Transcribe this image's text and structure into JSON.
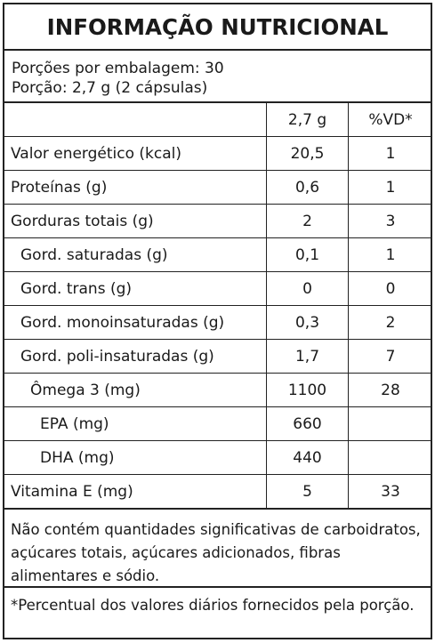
{
  "title": "INFORMAÇÃO NUTRICIONAL",
  "servings": {
    "per_package": "Porções por embalagem: 30",
    "portion": "Porção: 2,7 g (2 cápsulas)"
  },
  "table": {
    "headers": {
      "name": "",
      "amount": "2,7 g",
      "dv": "%VD*"
    },
    "rows": [
      {
        "name": "Valor energético (kcal)",
        "amount": "20,5",
        "dv": "1",
        "indent": 0
      },
      {
        "name": "Proteínas (g)",
        "amount": "0,6",
        "dv": "1",
        "indent": 0
      },
      {
        "name": "Gorduras totais (g)",
        "amount": "2",
        "dv": "3",
        "indent": 0
      },
      {
        "name": "Gord. saturadas (g)",
        "amount": "0,1",
        "dv": "1",
        "indent": 1
      },
      {
        "name": "Gord. trans (g)",
        "amount": "0",
        "dv": "0",
        "indent": 1
      },
      {
        "name": "Gord. monoinsaturadas (g)",
        "amount": "0,3",
        "dv": "2",
        "indent": 1
      },
      {
        "name": "Gord. poli-insaturadas (g)",
        "amount": "1,7",
        "dv": "7",
        "indent": 1
      },
      {
        "name": "Ômega 3 (mg)",
        "amount": "1100",
        "dv": "28",
        "indent": 2
      },
      {
        "name": "EPA (mg)",
        "amount": "660",
        "dv": "",
        "indent": 3
      },
      {
        "name": "DHA (mg)",
        "amount": "440",
        "dv": "",
        "indent": 3
      },
      {
        "name": "Vitamina E (mg)",
        "amount": "5",
        "dv": "33",
        "indent": 0
      }
    ]
  },
  "notes": {
    "not_significant": "Não contém quantidades significativas de carboidratos, açúcares totais, açúcares adicionados, fibras alimentares e sódio.",
    "footnote": "*Percentual dos valores diários fornecidos pela porção."
  }
}
